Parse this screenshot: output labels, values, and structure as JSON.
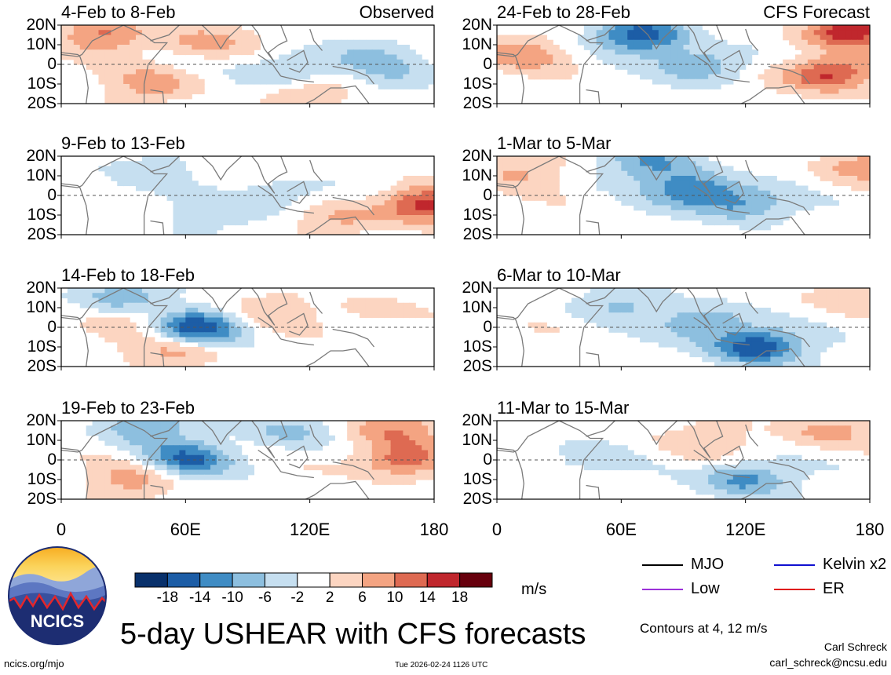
{
  "chart_data": {
    "type": "heatmap",
    "title": "5-day USHEAR with CFS forecasts",
    "variable": "USHEAR",
    "units": "m/s",
    "contour_note": "Contours at 4, 12 m/s",
    "x_axis": {
      "range": [
        0,
        180
      ],
      "ticks": [
        0,
        60,
        120,
        180
      ],
      "tick_labels": [
        "0",
        "60E",
        "120E",
        "180"
      ]
    },
    "y_axis": {
      "range": [
        -20,
        20
      ],
      "ticks": [
        20,
        10,
        0,
        -10,
        -20
      ],
      "tick_labels": [
        "20N",
        "10N",
        "0",
        "10S",
        "20S"
      ]
    },
    "colorbar": {
      "colors": [
        "#08306b",
        "#1c5da6",
        "#3f8cc4",
        "#8dbfdf",
        "#c6dff0",
        "#ffffff",
        "#fcd5c1",
        "#f4a482",
        "#de6a52",
        "#c0272d",
        "#67000d"
      ],
      "tick_values": [
        -18,
        -14,
        -10,
        -6,
        -2,
        2,
        6,
        10,
        14,
        18
      ],
      "tick_labels": [
        "-18",
        "-14",
        "-10",
        "-6",
        "-2",
        "2",
        "6",
        "10",
        "14",
        "18"
      ]
    },
    "legend": [
      {
        "label": "MJO",
        "color": "#000000"
      },
      {
        "label": "Kelvin x2",
        "color": "#1010d0"
      },
      {
        "label": "Low",
        "color": "#9b30d9"
      },
      {
        "label": "ER",
        "color": "#e0191c"
      }
    ],
    "columns": [
      {
        "tag": "Observed",
        "panels": [
          "4-Feb to 8-Feb",
          "9-Feb to 13-Feb",
          "14-Feb to 18-Feb",
          "19-Feb to 23-Feb"
        ]
      },
      {
        "tag": "CFS Forecast",
        "panels": [
          "24-Feb to 28-Feb",
          "1-Mar to 5-Mar",
          "6-Mar to 10-Mar",
          "11-Mar to 15-Mar"
        ]
      }
    ],
    "panel_fields": [
      [
        [
          [
            70,
            12,
            8
          ],
          [
            110,
            -3,
            -8
          ],
          [
            150,
            5,
            -5
          ],
          [
            20,
            15,
            10
          ],
          [
            45,
            -10,
            8
          ],
          [
            120,
            -15,
            6
          ],
          [
            160,
            -5,
            -4
          ]
        ],
        [
          [
            105,
            0,
            -6
          ],
          [
            175,
            -5,
            16
          ],
          [
            40,
            12,
            -5
          ],
          [
            135,
            -12,
            6
          ],
          [
            70,
            -10,
            -4
          ]
        ],
        [
          [
            65,
            0,
            -18
          ],
          [
            30,
            15,
            -10
          ],
          [
            55,
            -12,
            8
          ],
          [
            40,
            5,
            6
          ],
          [
            100,
            8,
            5
          ],
          [
            150,
            8,
            4
          ]
        ],
        [
          [
            60,
            0,
            -14
          ],
          [
            40,
            17,
            -10
          ],
          [
            165,
            0,
            13
          ],
          [
            160,
            16,
            10
          ],
          [
            35,
            -10,
            8
          ],
          [
            110,
            15,
            -8
          ]
        ]
      ],
      [
        [
          [
            70,
            15,
            -16
          ],
          [
            100,
            0,
            -10
          ],
          [
            160,
            -5,
            16
          ],
          [
            170,
            17,
            18
          ],
          [
            10,
            5,
            8
          ]
        ],
        [
          [
            95,
            3,
            -14
          ],
          [
            75,
            17,
            -10
          ],
          [
            120,
            -5,
            -10
          ],
          [
            175,
            15,
            8
          ],
          [
            10,
            12,
            6
          ]
        ],
        [
          [
            125,
            -10,
            -18
          ],
          [
            100,
            3,
            -10
          ],
          [
            60,
            12,
            -6
          ],
          [
            170,
            17,
            6
          ]
        ],
        [
          [
            120,
            -10,
            -12
          ],
          [
            160,
            15,
            8
          ],
          [
            40,
            0,
            -4
          ],
          [
            100,
            10,
            5
          ]
        ]
      ]
    ]
  },
  "footer": {
    "site_url": "ncics.org/mjo",
    "timestamp": "Tue 2026-02-24 1126 UTC",
    "author": "Carl Schreck",
    "email": "carl_schreck@ncsu.edu"
  },
  "logo": {
    "text": "NCICS"
  }
}
